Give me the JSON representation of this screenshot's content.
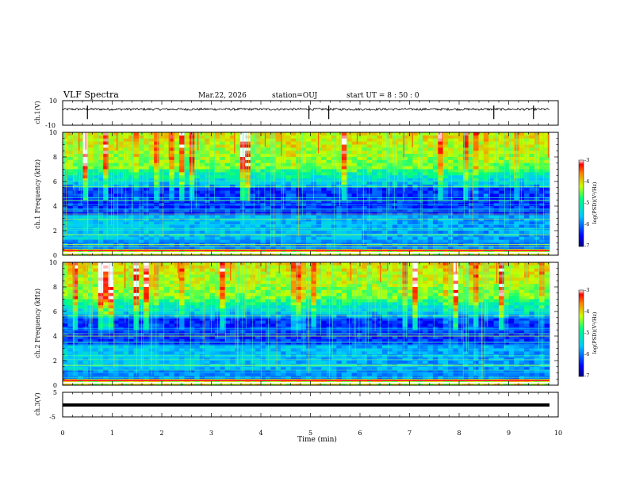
{
  "header": {
    "title": "VLF Spectra",
    "date": "Mar.22, 2026",
    "station": "station=OUJ",
    "start_ut": "start  UT =   8 : 50 : 0"
  },
  "chart_data": [
    {
      "type": "line",
      "name": "ch1-waveform",
      "ylabel": "ch.1(V)",
      "ylim": [
        -10,
        10
      ],
      "yticks": [
        "10",
        "-10"
      ],
      "baseline": 3,
      "spike_times_min": [
        0.5,
        4.97,
        5.37,
        8.7,
        9.5
      ]
    },
    {
      "type": "heatmap",
      "name": "ch1-spectrogram",
      "ylabel": "ch.1  Frequency (kHz)",
      "ylim": [
        0,
        10
      ],
      "yticks": [
        "0",
        "2",
        "4",
        "6",
        "8",
        "10"
      ],
      "colorbar": {
        "label": "log(PSD)(V²/Hz)",
        "range": [
          -7,
          -3
        ],
        "ticks": [
          "-3",
          "-4",
          "-5",
          "-6",
          "-7"
        ]
      }
    },
    {
      "type": "heatmap",
      "name": "ch2-spectrogram",
      "ylabel": "ch.2  Frequency (kHz)",
      "ylim": [
        0,
        10
      ],
      "yticks": [
        "0",
        "2",
        "4",
        "6",
        "8",
        "10"
      ],
      "colorbar": {
        "label": "log(PSD)(V²/Hz)",
        "range": [
          -7,
          -3
        ],
        "ticks": [
          "-3",
          "-4",
          "-5",
          "-6",
          "-7"
        ]
      }
    },
    {
      "type": "line",
      "name": "ch3-waveform",
      "ylabel": "ch.3(V)",
      "ylim": [
        -5,
        5
      ],
      "yticks": [
        "5",
        "-5"
      ],
      "baseline": -1.3
    }
  ],
  "xaxis": {
    "label": "Time (min)",
    "range": [
      0,
      10
    ],
    "ticks": [
      "0",
      "1",
      "2",
      "3",
      "4",
      "5",
      "6",
      "7",
      "8",
      "9",
      "10"
    ]
  }
}
